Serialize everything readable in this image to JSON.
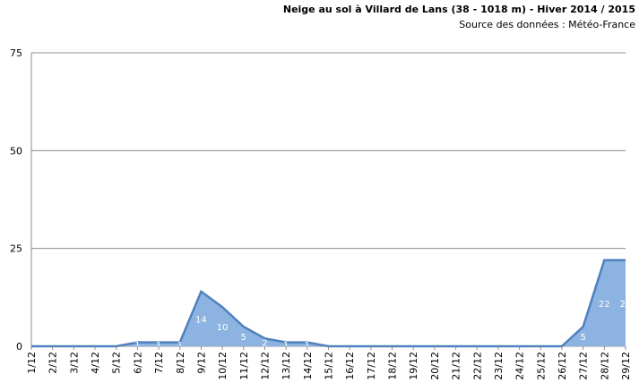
{
  "chart_data": {
    "type": "area",
    "title": "Neige au sol à Villard de Lans (38 - 1018 m) - Hiver 2014 / 2015",
    "subtitle": "Source des données : Météo-France",
    "categories": [
      "1/12",
      "2/12",
      "3/12",
      "4/12",
      "5/12",
      "6/12",
      "7/12",
      "8/12",
      "9/12",
      "10/12",
      "11/12",
      "12/12",
      "13/12",
      "14/12",
      "15/12",
      "16/12",
      "17/12",
      "18/12",
      "19/12",
      "20/12",
      "21/12",
      "22/12",
      "23/12",
      "24/12",
      "25/12",
      "26/12",
      "27/12",
      "28/12",
      "29/12"
    ],
    "values": [
      0,
      0,
      0,
      0,
      0,
      1,
      1,
      1,
      14,
      10,
      5,
      2,
      1,
      1,
      0,
      0,
      0,
      0,
      0,
      0,
      0,
      0,
      0,
      0,
      0,
      0,
      5,
      22,
      22
    ],
    "color": "#8db3e2",
    "line_color": "#4f81bd",
    "ylim": [
      0,
      75
    ],
    "yticks": [
      0,
      25,
      50,
      75
    ],
    "grid": true
  }
}
